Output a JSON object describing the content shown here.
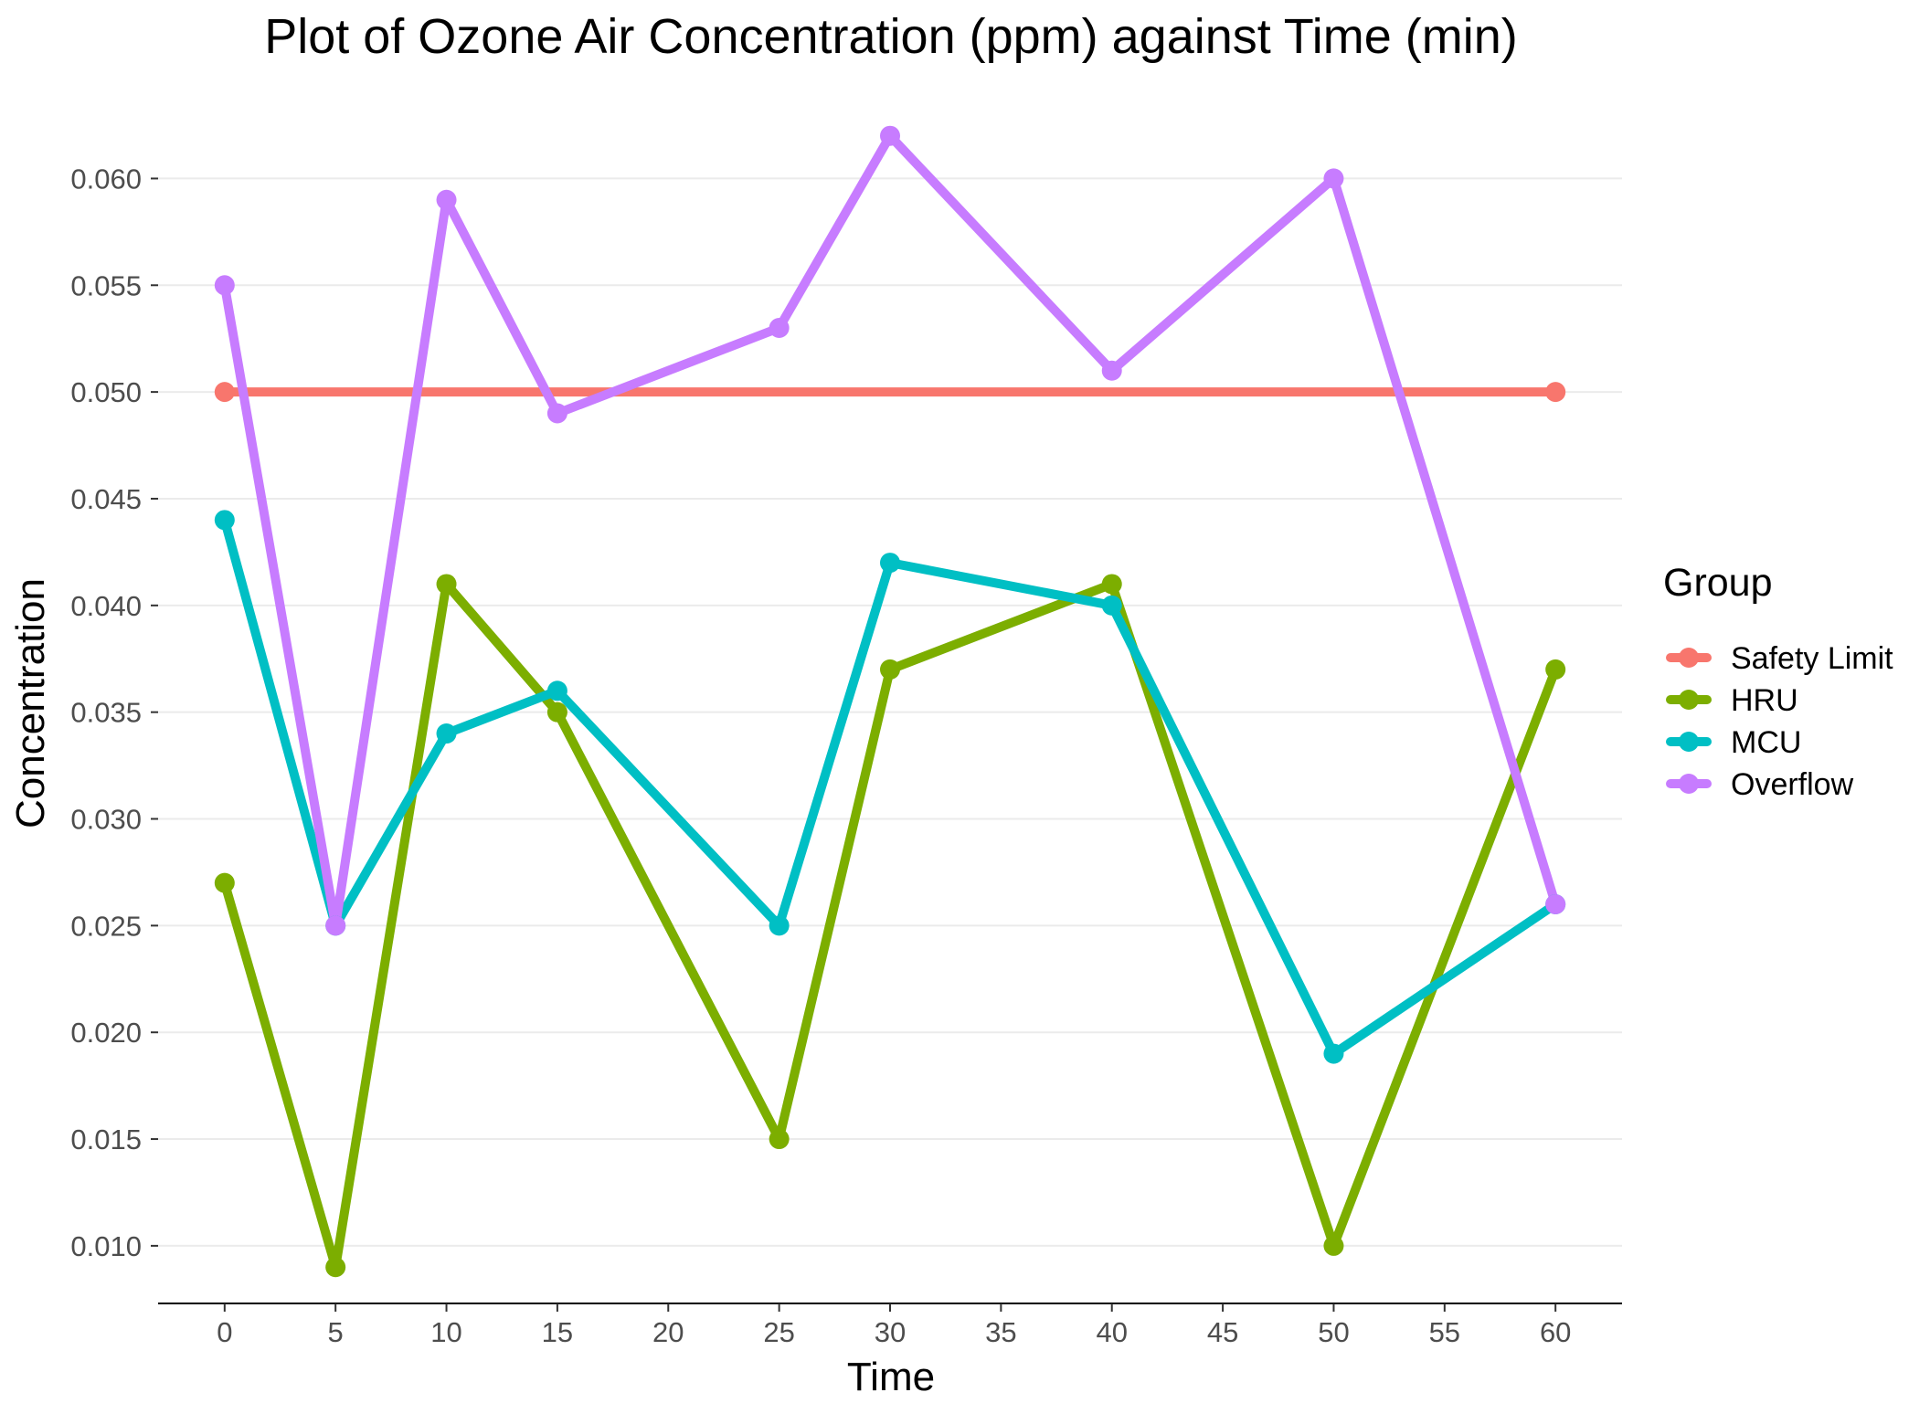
{
  "chart_data": {
    "type": "line",
    "title": "Plot of Ozone Air Concentration (ppm) against Time (min)",
    "xlabel": "Time",
    "ylabel": "Concentration",
    "xlim": [
      -3,
      63
    ],
    "ylim": [
      0.0073,
      0.0628
    ],
    "xticks": [
      0,
      5,
      10,
      15,
      20,
      25,
      30,
      35,
      40,
      45,
      50,
      55,
      60
    ],
    "yticks": [
      0.01,
      0.015,
      0.02,
      0.025,
      0.03,
      0.035,
      0.04,
      0.045,
      0.05,
      0.055,
      0.06
    ],
    "ytick_labels": [
      "0.010",
      "0.015",
      "0.020",
      "0.025",
      "0.030",
      "0.035",
      "0.040",
      "0.045",
      "0.050",
      "0.055",
      "0.060"
    ],
    "grid": true,
    "legend": {
      "title": "Group",
      "position": "right"
    },
    "series": [
      {
        "name": "Safety Limit",
        "color": "#F8766D",
        "x": [
          0,
          60
        ],
        "y": [
          0.05,
          0.05
        ]
      },
      {
        "name": "HRU",
        "color": "#7CAE00",
        "x": [
          0,
          5,
          10,
          15,
          25,
          30,
          40,
          50,
          60
        ],
        "y": [
          0.027,
          0.009,
          0.041,
          0.035,
          0.015,
          0.037,
          0.041,
          0.01,
          0.037
        ]
      },
      {
        "name": "MCU",
        "color": "#00BFC4",
        "x": [
          0,
          5,
          10,
          15,
          25,
          30,
          40,
          50,
          60
        ],
        "y": [
          0.044,
          0.025,
          0.034,
          0.036,
          0.025,
          0.042,
          0.04,
          0.019,
          0.026
        ]
      },
      {
        "name": "Overflow",
        "color": "#C77CFF",
        "x": [
          0,
          5,
          10,
          15,
          25,
          30,
          40,
          50,
          60
        ],
        "y": [
          0.055,
          0.025,
          0.059,
          0.049,
          0.053,
          0.062,
          0.051,
          0.06,
          0.026
        ]
      }
    ]
  }
}
